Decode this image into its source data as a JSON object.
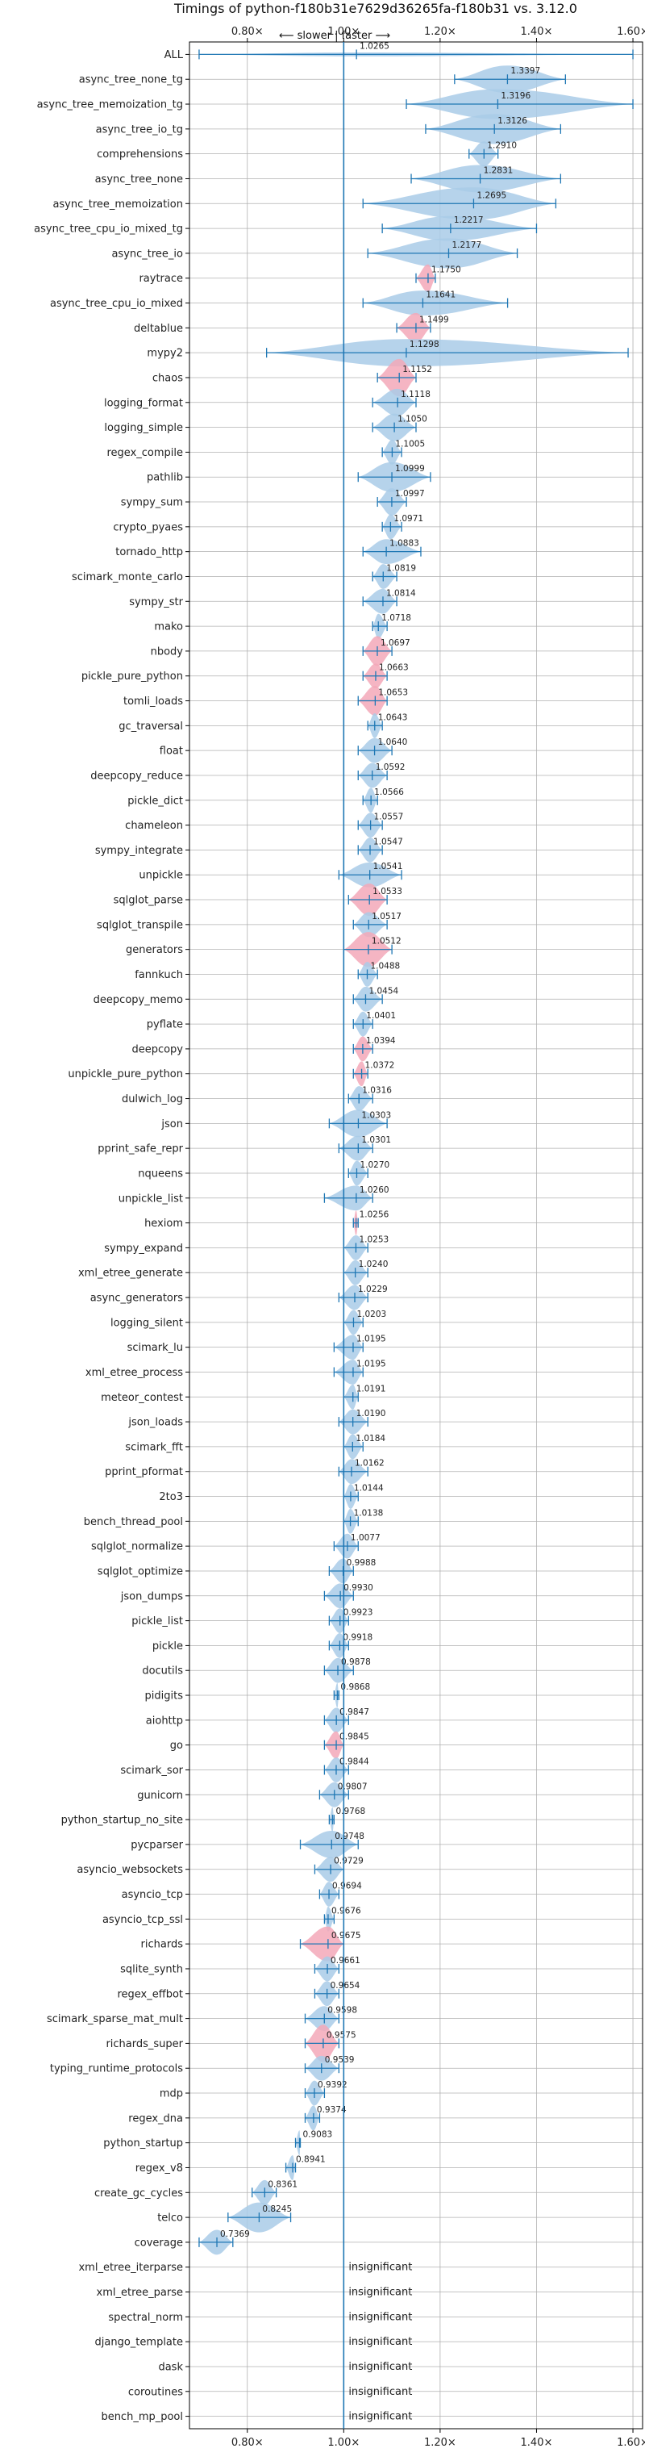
{
  "chart_data": {
    "type": "violin",
    "title": "Timings of python-f180b31e7629d36265fa-f180b31 vs. 3.12.0",
    "subtitle": "⟵ slower | faster ⟶",
    "xlim": [
      0.68,
      1.62
    ],
    "x_ticks": [
      {
        "value": 0.8,
        "label": "0.80×"
      },
      {
        "value": 1.0,
        "label": "1.00×"
      },
      {
        "value": 1.2,
        "label": "1.20×"
      },
      {
        "value": 1.4,
        "label": "1.40×"
      },
      {
        "value": 1.6,
        "label": "1.60×"
      }
    ],
    "grid": true,
    "colors": {
      "normal": "#a9cbe8",
      "highlight": "#f3a8b8",
      "line": "#1f77b4",
      "grid": "#b0b0b0"
    },
    "insignificant_text": "insignificant",
    "benchmarks": [
      {
        "name": "ALL",
        "value": 1.0265,
        "label": "1.0265",
        "min": 0.7,
        "max": 1.6,
        "width": 0.08,
        "highlight": false
      },
      {
        "name": "async_tree_none_tg",
        "value": 1.3397,
        "label": "1.3397",
        "min": 1.23,
        "max": 1.46,
        "width": 0.55,
        "highlight": false
      },
      {
        "name": "async_tree_memoization_tg",
        "value": 1.3196,
        "label": "1.3196",
        "min": 1.13,
        "max": 1.6,
        "width": 0.6,
        "highlight": false
      },
      {
        "name": "async_tree_io_tg",
        "value": 1.3126,
        "label": "1.3126",
        "min": 1.17,
        "max": 1.45,
        "width": 0.6,
        "highlight": false
      },
      {
        "name": "comprehensions",
        "value": 1.291,
        "label": "1.2910",
        "min": 1.26,
        "max": 1.32,
        "width": 0.5,
        "highlight": false
      },
      {
        "name": "async_tree_none",
        "value": 1.2831,
        "label": "1.2831",
        "min": 1.14,
        "max": 1.45,
        "width": 0.55,
        "highlight": false
      },
      {
        "name": "async_tree_memoization",
        "value": 1.2695,
        "label": "1.2695",
        "min": 1.04,
        "max": 1.44,
        "width": 0.65,
        "highlight": false
      },
      {
        "name": "async_tree_cpu_io_mixed_tg",
        "value": 1.2217,
        "label": "1.2217",
        "min": 1.08,
        "max": 1.4,
        "width": 0.5,
        "highlight": false
      },
      {
        "name": "async_tree_io",
        "value": 1.2177,
        "label": "1.2177",
        "min": 1.05,
        "max": 1.36,
        "width": 0.6,
        "highlight": false
      },
      {
        "name": "raytrace",
        "value": 1.175,
        "label": "1.1750",
        "min": 1.15,
        "max": 1.19,
        "width": 0.55,
        "highlight": true
      },
      {
        "name": "async_tree_cpu_io_mixed",
        "value": 1.1641,
        "label": "1.1641",
        "min": 1.04,
        "max": 1.34,
        "width": 0.5,
        "highlight": false
      },
      {
        "name": "deltablue",
        "value": 1.1499,
        "label": "1.1499",
        "min": 1.11,
        "max": 1.18,
        "width": 0.6,
        "highlight": true
      },
      {
        "name": "mypy2",
        "value": 1.1298,
        "label": "1.1298",
        "min": 0.84,
        "max": 1.59,
        "width": 0.55,
        "highlight": false
      },
      {
        "name": "chaos",
        "value": 1.1152,
        "label": "1.1152",
        "min": 1.07,
        "max": 1.15,
        "width": 0.75,
        "highlight": true
      },
      {
        "name": "logging_format",
        "value": 1.1118,
        "label": "1.1118",
        "min": 1.06,
        "max": 1.15,
        "width": 0.55,
        "highlight": false
      },
      {
        "name": "logging_simple",
        "value": 1.105,
        "label": "1.1050",
        "min": 1.06,
        "max": 1.15,
        "width": 0.55,
        "highlight": false
      },
      {
        "name": "regex_compile",
        "value": 1.1005,
        "label": "1.1005",
        "min": 1.08,
        "max": 1.12,
        "width": 0.5,
        "highlight": false
      },
      {
        "name": "pathlib",
        "value": 1.0999,
        "label": "1.0999",
        "min": 1.03,
        "max": 1.18,
        "width": 0.6,
        "highlight": false
      },
      {
        "name": "sympy_sum",
        "value": 1.0997,
        "label": "1.0997",
        "min": 1.07,
        "max": 1.13,
        "width": 0.55,
        "highlight": false
      },
      {
        "name": "crypto_pyaes",
        "value": 1.0971,
        "label": "1.0971",
        "min": 1.08,
        "max": 1.12,
        "width": 0.5,
        "highlight": false
      },
      {
        "name": "tornado_http",
        "value": 1.0883,
        "label": "1.0883",
        "min": 1.04,
        "max": 1.16,
        "width": 0.5,
        "highlight": false
      },
      {
        "name": "scimark_monte_carlo",
        "value": 1.0819,
        "label": "1.0819",
        "min": 1.06,
        "max": 1.11,
        "width": 0.5,
        "highlight": false
      },
      {
        "name": "sympy_str",
        "value": 1.0814,
        "label": "1.0814",
        "min": 1.04,
        "max": 1.11,
        "width": 0.5,
        "highlight": false
      },
      {
        "name": "mako",
        "value": 1.0718,
        "label": "1.0718",
        "min": 1.06,
        "max": 1.09,
        "width": 0.5,
        "highlight": false
      },
      {
        "name": "nbody",
        "value": 1.0697,
        "label": "1.0697",
        "min": 1.04,
        "max": 1.1,
        "width": 0.6,
        "highlight": true
      },
      {
        "name": "pickle_pure_python",
        "value": 1.0663,
        "label": "1.0663",
        "min": 1.04,
        "max": 1.09,
        "width": 0.5,
        "highlight": true
      },
      {
        "name": "tomli_loads",
        "value": 1.0653,
        "label": "1.0653",
        "min": 1.03,
        "max": 1.09,
        "width": 0.6,
        "highlight": true
      },
      {
        "name": "gc_traversal",
        "value": 1.0643,
        "label": "1.0643",
        "min": 1.05,
        "max": 1.08,
        "width": 0.5,
        "highlight": false
      },
      {
        "name": "float",
        "value": 1.064,
        "label": "1.0640",
        "min": 1.03,
        "max": 1.1,
        "width": 0.5,
        "highlight": false
      },
      {
        "name": "deepcopy_reduce",
        "value": 1.0592,
        "label": "1.0592",
        "min": 1.03,
        "max": 1.09,
        "width": 0.5,
        "highlight": false
      },
      {
        "name": "pickle_dict",
        "value": 1.0566,
        "label": "1.0566",
        "min": 1.04,
        "max": 1.07,
        "width": 0.5,
        "highlight": false
      },
      {
        "name": "chameleon",
        "value": 1.0557,
        "label": "1.0557",
        "min": 1.03,
        "max": 1.08,
        "width": 0.5,
        "highlight": false
      },
      {
        "name": "sympy_integrate",
        "value": 1.0547,
        "label": "1.0547",
        "min": 1.03,
        "max": 1.08,
        "width": 0.5,
        "highlight": false
      },
      {
        "name": "unpickle",
        "value": 1.0541,
        "label": "1.0541",
        "min": 0.99,
        "max": 1.12,
        "width": 0.5,
        "highlight": false
      },
      {
        "name": "sqlglot_parse",
        "value": 1.0533,
        "label": "1.0533",
        "min": 1.01,
        "max": 1.09,
        "width": 0.65,
        "highlight": true
      },
      {
        "name": "sqlglot_transpile",
        "value": 1.0517,
        "label": "1.0517",
        "min": 1.02,
        "max": 1.09,
        "width": 0.5,
        "highlight": false
      },
      {
        "name": "generators",
        "value": 1.0512,
        "label": "1.0512",
        "min": 1.0,
        "max": 1.1,
        "width": 0.7,
        "highlight": true
      },
      {
        "name": "fannkuch",
        "value": 1.0488,
        "label": "1.0488",
        "min": 1.03,
        "max": 1.07,
        "width": 0.5,
        "highlight": false
      },
      {
        "name": "deepcopy_memo",
        "value": 1.0454,
        "label": "1.0454",
        "min": 1.02,
        "max": 1.08,
        "width": 0.5,
        "highlight": false
      },
      {
        "name": "pyflate",
        "value": 1.0401,
        "label": "1.0401",
        "min": 1.02,
        "max": 1.06,
        "width": 0.5,
        "highlight": false
      },
      {
        "name": "deepcopy",
        "value": 1.0394,
        "label": "1.0394",
        "min": 1.02,
        "max": 1.06,
        "width": 0.5,
        "highlight": true
      },
      {
        "name": "unpickle_pure_python",
        "value": 1.0372,
        "label": "1.0372",
        "min": 1.02,
        "max": 1.05,
        "width": 0.5,
        "highlight": true
      },
      {
        "name": "dulwich_log",
        "value": 1.0316,
        "label": "1.0316",
        "min": 1.01,
        "max": 1.06,
        "width": 0.5,
        "highlight": false
      },
      {
        "name": "json",
        "value": 1.0303,
        "label": "1.0303",
        "min": 0.97,
        "max": 1.09,
        "width": 0.55,
        "highlight": false
      },
      {
        "name": "pprint_safe_repr",
        "value": 1.0301,
        "label": "1.0301",
        "min": 0.99,
        "max": 1.06,
        "width": 0.5,
        "highlight": false
      },
      {
        "name": "nqueens",
        "value": 1.027,
        "label": "1.0270",
        "min": 1.01,
        "max": 1.05,
        "width": 0.5,
        "highlight": false
      },
      {
        "name": "unpickle_list",
        "value": 1.026,
        "label": "1.0260",
        "min": 0.96,
        "max": 1.06,
        "width": 0.5,
        "highlight": false
      },
      {
        "name": "hexiom",
        "value": 1.0256,
        "label": "1.0256",
        "min": 1.02,
        "max": 1.03,
        "width": 0.5,
        "highlight": true
      },
      {
        "name": "sympy_expand",
        "value": 1.0253,
        "label": "1.0253",
        "min": 1.0,
        "max": 1.05,
        "width": 0.5,
        "highlight": false
      },
      {
        "name": "xml_etree_generate",
        "value": 1.024,
        "label": "1.0240",
        "min": 1.0,
        "max": 1.05,
        "width": 0.5,
        "highlight": false
      },
      {
        "name": "async_generators",
        "value": 1.0229,
        "label": "1.0229",
        "min": 0.99,
        "max": 1.05,
        "width": 0.5,
        "highlight": false
      },
      {
        "name": "logging_silent",
        "value": 1.0203,
        "label": "1.0203",
        "min": 1.0,
        "max": 1.04,
        "width": 0.5,
        "highlight": false
      },
      {
        "name": "scimark_lu",
        "value": 1.0195,
        "label": "1.0195",
        "min": 0.98,
        "max": 1.04,
        "width": 0.5,
        "highlight": false
      },
      {
        "name": "xml_etree_process",
        "value": 1.0195,
        "label": "1.0195",
        "min": 0.98,
        "max": 1.04,
        "width": 0.5,
        "highlight": false
      },
      {
        "name": "meteor_contest",
        "value": 1.0191,
        "label": "1.0191",
        "min": 1.0,
        "max": 1.03,
        "width": 0.5,
        "highlight": false
      },
      {
        "name": "json_loads",
        "value": 1.019,
        "label": "1.0190",
        "min": 0.99,
        "max": 1.05,
        "width": 0.5,
        "highlight": false
      },
      {
        "name": "scimark_fft",
        "value": 1.0184,
        "label": "1.0184",
        "min": 1.0,
        "max": 1.04,
        "width": 0.5,
        "highlight": false
      },
      {
        "name": "pprint_pformat",
        "value": 1.0162,
        "label": "1.0162",
        "min": 0.99,
        "max": 1.05,
        "width": 0.5,
        "highlight": false
      },
      {
        "name": "2to3",
        "value": 1.0144,
        "label": "1.0144",
        "min": 1.0,
        "max": 1.03,
        "width": 0.5,
        "highlight": false
      },
      {
        "name": "bench_thread_pool",
        "value": 1.0138,
        "label": "1.0138",
        "min": 1.0,
        "max": 1.03,
        "width": 0.5,
        "highlight": false
      },
      {
        "name": "sqlglot_normalize",
        "value": 1.0077,
        "label": "1.0077",
        "min": 0.98,
        "max": 1.03,
        "width": 0.5,
        "highlight": false
      },
      {
        "name": "sqlglot_optimize",
        "value": 0.9988,
        "label": "0.9988",
        "min": 0.97,
        "max": 1.02,
        "width": 0.5,
        "highlight": false
      },
      {
        "name": "json_dumps",
        "value": 0.993,
        "label": "0.9930",
        "min": 0.96,
        "max": 1.02,
        "width": 0.5,
        "highlight": false
      },
      {
        "name": "pickle_list",
        "value": 0.9923,
        "label": "0.9923",
        "min": 0.97,
        "max": 1.01,
        "width": 0.5,
        "highlight": false
      },
      {
        "name": "pickle",
        "value": 0.9918,
        "label": "0.9918",
        "min": 0.97,
        "max": 1.01,
        "width": 0.5,
        "highlight": false
      },
      {
        "name": "docutils",
        "value": 0.9878,
        "label": "0.9878",
        "min": 0.96,
        "max": 1.02,
        "width": 0.5,
        "highlight": false
      },
      {
        "name": "pidigits",
        "value": 0.9868,
        "label": "0.9868",
        "min": 0.98,
        "max": 0.99,
        "width": 0.5,
        "highlight": false
      },
      {
        "name": "aiohttp",
        "value": 0.9847,
        "label": "0.9847",
        "min": 0.96,
        "max": 1.01,
        "width": 0.5,
        "highlight": false
      },
      {
        "name": "go",
        "value": 0.9845,
        "label": "0.9845",
        "min": 0.96,
        "max": 1.0,
        "width": 0.55,
        "highlight": true
      },
      {
        "name": "scimark_sor",
        "value": 0.9844,
        "label": "0.9844",
        "min": 0.96,
        "max": 1.01,
        "width": 0.5,
        "highlight": false
      },
      {
        "name": "gunicorn",
        "value": 0.9807,
        "label": "0.9807",
        "min": 0.95,
        "max": 1.01,
        "width": 0.5,
        "highlight": false
      },
      {
        "name": "python_startup_no_site",
        "value": 0.9768,
        "label": "0.9768",
        "min": 0.97,
        "max": 0.98,
        "width": 0.5,
        "highlight": false
      },
      {
        "name": "pycparser",
        "value": 0.9748,
        "label": "0.9748",
        "min": 0.91,
        "max": 1.03,
        "width": 0.55,
        "highlight": false
      },
      {
        "name": "asyncio_websockets",
        "value": 0.9729,
        "label": "0.9729",
        "min": 0.94,
        "max": 1.0,
        "width": 0.5,
        "highlight": false
      },
      {
        "name": "asyncio_tcp",
        "value": 0.9694,
        "label": "0.9694",
        "min": 0.95,
        "max": 0.99,
        "width": 0.5,
        "highlight": false
      },
      {
        "name": "asyncio_tcp_ssl",
        "value": 0.9676,
        "label": "0.9676",
        "min": 0.96,
        "max": 0.98,
        "width": 0.5,
        "highlight": false
      },
      {
        "name": "richards",
        "value": 0.9675,
        "label": "0.9675",
        "min": 0.91,
        "max": 1.0,
        "width": 0.7,
        "highlight": true
      },
      {
        "name": "sqlite_synth",
        "value": 0.9661,
        "label": "0.9661",
        "min": 0.94,
        "max": 0.99,
        "width": 0.5,
        "highlight": false
      },
      {
        "name": "regex_effbot",
        "value": 0.9654,
        "label": "0.9654",
        "min": 0.94,
        "max": 0.99,
        "width": 0.5,
        "highlight": false
      },
      {
        "name": "scimark_sparse_mat_mult",
        "value": 0.9598,
        "label": "0.9598",
        "min": 0.92,
        "max": 0.99,
        "width": 0.5,
        "highlight": false
      },
      {
        "name": "richards_super",
        "value": 0.9575,
        "label": "0.9575",
        "min": 0.92,
        "max": 0.99,
        "width": 0.75,
        "highlight": true
      },
      {
        "name": "typing_runtime_protocols",
        "value": 0.9539,
        "label": "0.9539",
        "min": 0.92,
        "max": 0.99,
        "width": 0.5,
        "highlight": false
      },
      {
        "name": "mdp",
        "value": 0.9392,
        "label": "0.9392",
        "min": 0.92,
        "max": 0.96,
        "width": 0.5,
        "highlight": false
      },
      {
        "name": "regex_dna",
        "value": 0.9374,
        "label": "0.9374",
        "min": 0.92,
        "max": 0.95,
        "width": 0.5,
        "highlight": false
      },
      {
        "name": "python_startup",
        "value": 0.9083,
        "label": "0.9083",
        "min": 0.9,
        "max": 0.91,
        "width": 0.5,
        "highlight": false
      },
      {
        "name": "regex_v8",
        "value": 0.8941,
        "label": "0.8941",
        "min": 0.88,
        "max": 0.9,
        "width": 0.5,
        "highlight": false
      },
      {
        "name": "create_gc_cycles",
        "value": 0.8361,
        "label": "0.8361",
        "min": 0.81,
        "max": 0.86,
        "width": 0.5,
        "highlight": false
      },
      {
        "name": "telco",
        "value": 0.8245,
        "label": "0.8245",
        "min": 0.76,
        "max": 0.89,
        "width": 0.6,
        "highlight": false
      },
      {
        "name": "coverage",
        "value": 0.7369,
        "label": "0.7369",
        "min": 0.7,
        "max": 0.77,
        "width": 0.5,
        "highlight": false
      },
      {
        "name": "xml_etree_iterparse",
        "insignificant": true
      },
      {
        "name": "xml_etree_parse",
        "insignificant": true
      },
      {
        "name": "spectral_norm",
        "insignificant": true
      },
      {
        "name": "django_template",
        "insignificant": true
      },
      {
        "name": "dask",
        "insignificant": true
      },
      {
        "name": "coroutines",
        "insignificant": true
      },
      {
        "name": "bench_mp_pool",
        "insignificant": true
      }
    ]
  }
}
